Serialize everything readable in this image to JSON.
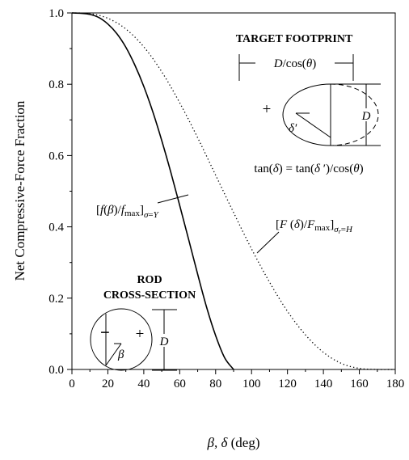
{
  "chart_data": {
    "type": "line",
    "xlabel": "β, δ (deg)",
    "ylabel": "Net Compressive-Force Fraction",
    "xlim": [
      0,
      180
    ],
    "ylim": [
      0.0,
      1.0
    ],
    "x_ticks": [
      "0",
      "20",
      "40",
      "60",
      "80",
      "100",
      "120",
      "140",
      "160",
      "180"
    ],
    "y_ticks": [
      "0.0",
      "0.2",
      "0.4",
      "0.6",
      "0.8",
      "1.0"
    ],
    "grid": false,
    "series": [
      {
        "name": "[f(β)/fmax]σ=Y",
        "style": "solid",
        "x": [
          0,
          5,
          10,
          15,
          20,
          25,
          30,
          35,
          40,
          45,
          50,
          55,
          60,
          65,
          70,
          75,
          80,
          85,
          90
        ],
        "y": [
          1.0,
          0.999,
          0.996,
          0.987,
          0.969,
          0.942,
          0.904,
          0.854,
          0.794,
          0.723,
          0.642,
          0.554,
          0.46,
          0.364,
          0.267,
          0.174,
          0.095,
          0.033,
          0.0
        ]
      },
      {
        "name": "[F(δ)/Fmax]σr=H",
        "style": "dotted",
        "x": [
          0,
          10,
          20,
          30,
          40,
          50,
          60,
          70,
          80,
          90,
          100,
          110,
          120,
          130,
          140,
          150,
          160,
          170,
          180
        ],
        "y": [
          1.0,
          0.998,
          0.985,
          0.955,
          0.905,
          0.835,
          0.748,
          0.65,
          0.545,
          0.44,
          0.338,
          0.245,
          0.163,
          0.097,
          0.048,
          0.017,
          0.003,
          0.0,
          0.0
        ]
      }
    ]
  },
  "annotations": {
    "target_title": "TARGET FOOTPRINT",
    "target_width": "D/cos(θ)",
    "target_height": "D",
    "target_angle": "δ′",
    "target_plus": "+",
    "tan_relation": "tan(δ) = tan(δ′)/cos(θ)",
    "rod_title_1": "ROD",
    "rod_title_2": "CROSS-SECTION",
    "rod_diameter": "D",
    "rod_angle": "β",
    "rod_minus": "−",
    "rod_plus": "+"
  }
}
